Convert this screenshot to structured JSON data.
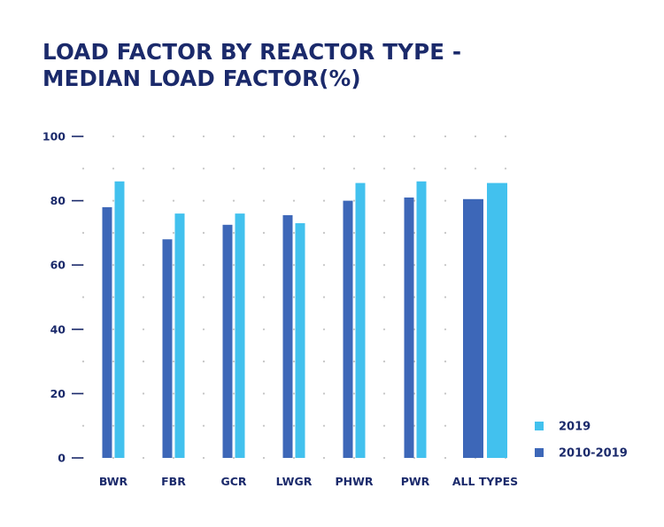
{
  "chart_data": {
    "type": "bar",
    "title_lines": [
      "LOAD FACTOR BY REACTOR TYPE -",
      "MEDIAN LOAD FACTOR(%)"
    ],
    "categories": [
      "BWR",
      "FBR",
      "GCR",
      "LWGR",
      "PHWR",
      "PWR",
      "ALL TYPES"
    ],
    "series": [
      {
        "name": "2010-2019",
        "color": "#3d67b8",
        "values": [
          78,
          68,
          72.5,
          75.5,
          80,
          81,
          80.5
        ]
      },
      {
        "name": "2019",
        "color": "#42c1ee",
        "values": [
          86,
          76,
          76,
          73,
          85.5,
          86,
          85.5
        ]
      }
    ],
    "yticks": [
      "0",
      "20",
      "40",
      "60",
      "80",
      "100"
    ],
    "ylim": [
      0,
      100
    ],
    "grid": "dotted",
    "legend": {
      "placement": "bottom-right",
      "items": [
        "2019",
        "2010-2019"
      ]
    }
  }
}
